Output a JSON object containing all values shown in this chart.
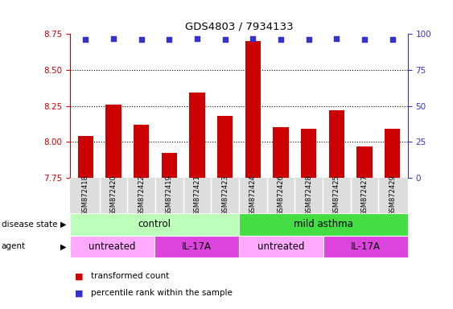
{
  "title": "GDS4803 / 7934133",
  "samples": [
    "GSM872418",
    "GSM872420",
    "GSM872422",
    "GSM872419",
    "GSM872421",
    "GSM872423",
    "GSM872424",
    "GSM872426",
    "GSM872428",
    "GSM872425",
    "GSM872427",
    "GSM872429"
  ],
  "bar_values": [
    8.04,
    8.26,
    8.12,
    7.92,
    8.34,
    8.18,
    8.7,
    8.1,
    8.09,
    8.22,
    7.97,
    8.09
  ],
  "percentile_values": [
    96,
    97,
    96,
    96,
    97,
    96,
    97,
    96,
    96,
    97,
    96,
    96
  ],
  "ylim_left": [
    7.75,
    8.75
  ],
  "ylim_right": [
    0,
    100
  ],
  "yticks_left": [
    7.75,
    8.0,
    8.25,
    8.5,
    8.75
  ],
  "yticks_right": [
    0,
    25,
    50,
    75,
    100
  ],
  "bar_color": "#cc0000",
  "dot_color": "#3333cc",
  "bar_width": 0.55,
  "disease_state_groups": [
    {
      "label": "control",
      "start": 0,
      "end": 6,
      "color": "#bbffbb"
    },
    {
      "label": "mild asthma",
      "start": 6,
      "end": 12,
      "color": "#44dd44"
    }
  ],
  "agent_groups": [
    {
      "label": "untreated",
      "start": 0,
      "end": 3,
      "color": "#ffaaff"
    },
    {
      "label": "IL-17A",
      "start": 3,
      "end": 6,
      "color": "#dd44dd"
    },
    {
      "label": "untreated",
      "start": 6,
      "end": 9,
      "color": "#ffaaff"
    },
    {
      "label": "IL-17A",
      "start": 9,
      "end": 12,
      "color": "#dd44dd"
    }
  ],
  "legend_items": [
    {
      "label": "transformed count",
      "color": "#cc0000"
    },
    {
      "label": "percentile rank within the sample",
      "color": "#3333cc"
    }
  ],
  "left_label_color": "#cc0000",
  "right_label_color": "#3333cc",
  "disease_state_label": "disease state",
  "agent_label": "agent",
  "xtick_bg_color": "#dddddd"
}
